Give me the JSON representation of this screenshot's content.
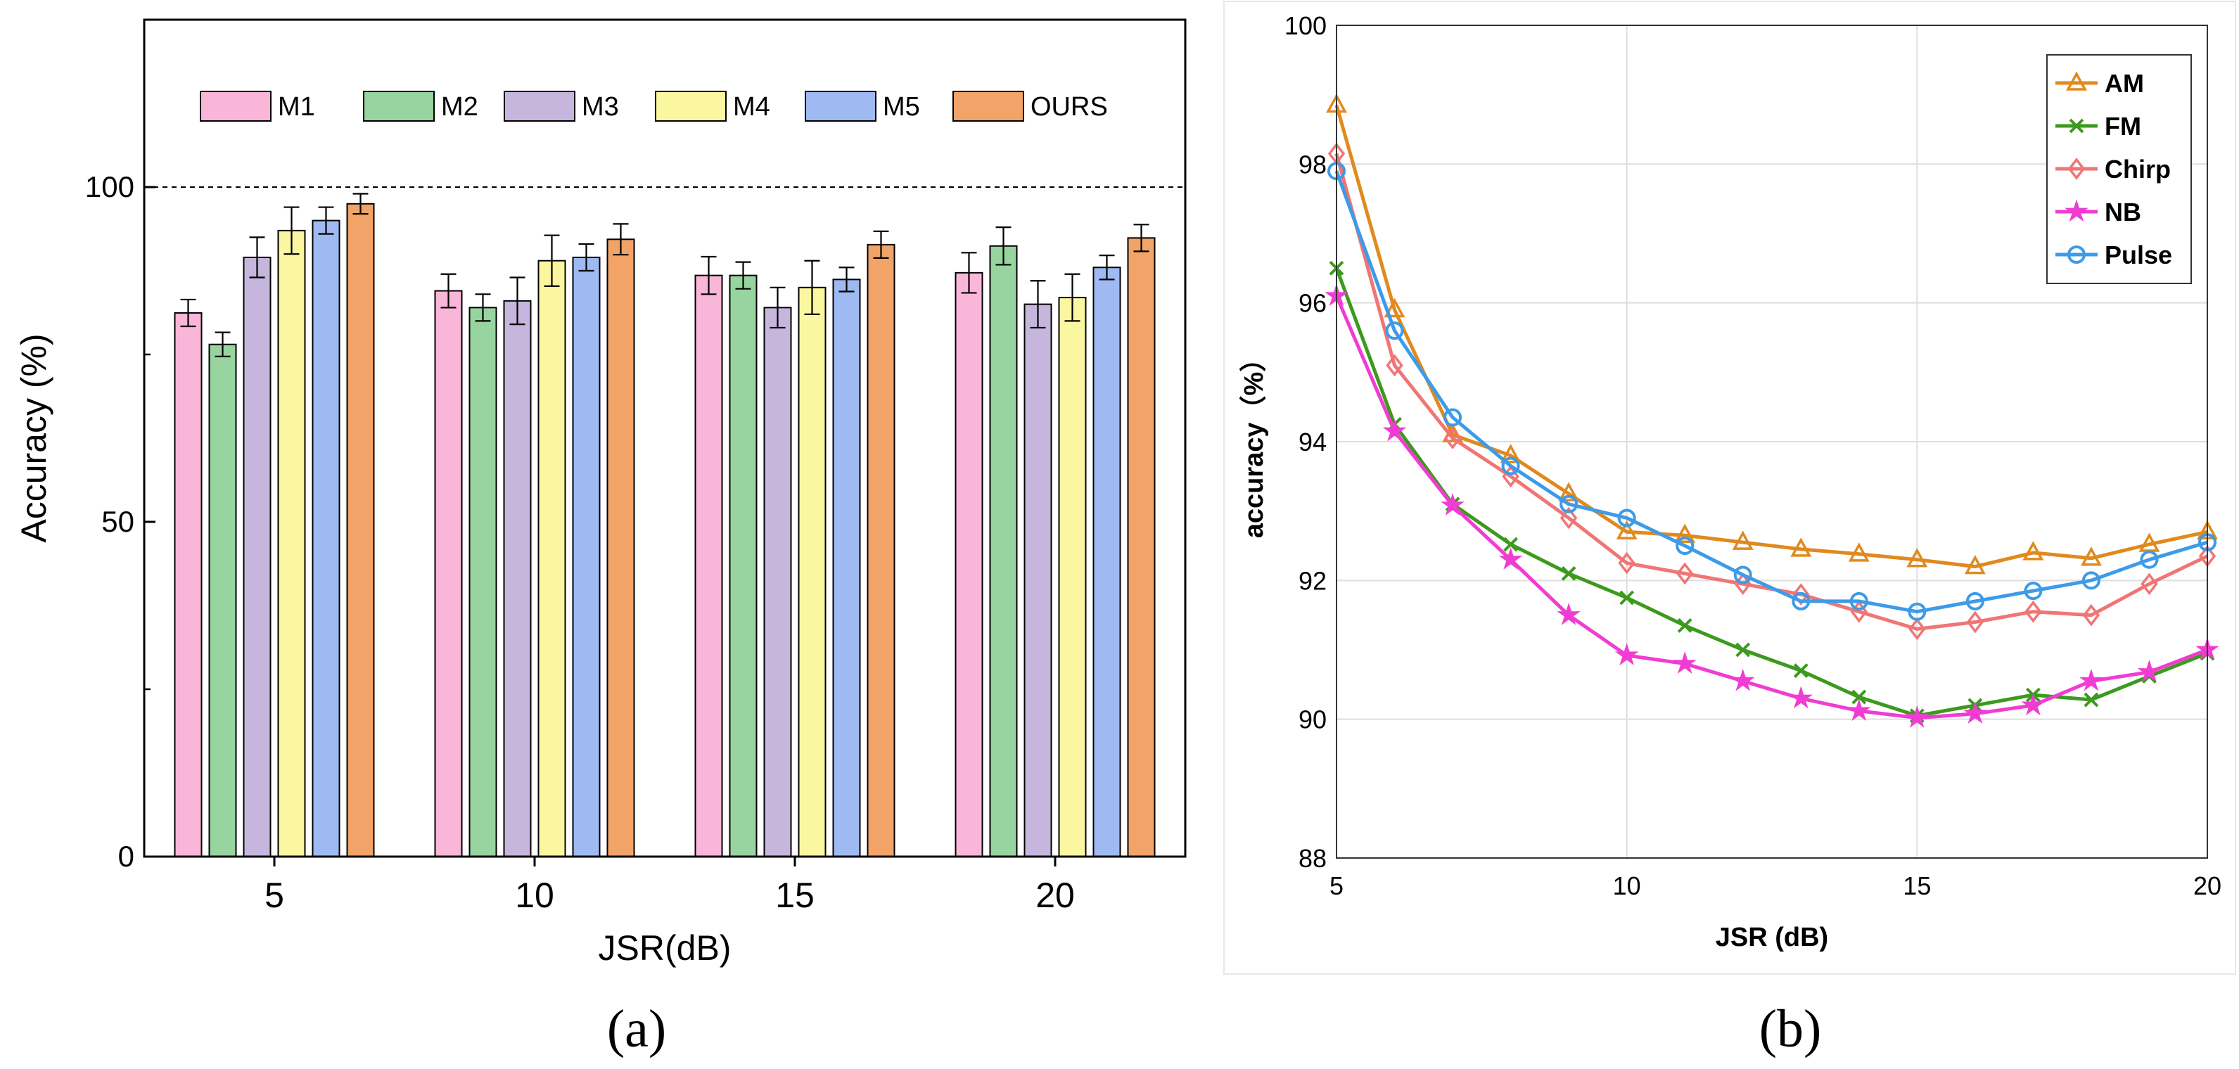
{
  "panels": {
    "a": {
      "caption": "(a)"
    },
    "b": {
      "caption": "(b)"
    }
  },
  "colors": {
    "M1": "#f9b6d8",
    "M2": "#98d49f",
    "M3": "#c6b6dd",
    "M4": "#fbf7a1",
    "M5": "#9fbaf2",
    "OURS": "#f2a368",
    "AM": "#e08a1e",
    "FM": "#3c9a1c",
    "Chirp": "#f07575",
    "NB": "#f03cd2",
    "Pulse": "#3d9be8"
  },
  "chart_data": [
    {
      "id": "a",
      "type": "bar",
      "title": "",
      "xlabel": "JSR(dB)",
      "ylabel": "Accuracy (%)",
      "ylim": [
        0,
        125
      ],
      "yticks": [
        0,
        50,
        100
      ],
      "reference_line": 100,
      "legend_position": "top",
      "categories": [
        "5",
        "10",
        "15",
        "20"
      ],
      "series": [
        {
          "name": "M1",
          "values": [
            81.2,
            84.5,
            86.8,
            87.2
          ],
          "errors": [
            2.0,
            2.5,
            2.8,
            3.0
          ]
        },
        {
          "name": "M2",
          "values": [
            76.5,
            82.0,
            86.8,
            91.2
          ],
          "errors": [
            1.8,
            2.0,
            2.0,
            2.8
          ]
        },
        {
          "name": "M3",
          "values": [
            89.5,
            83.0,
            82.0,
            82.5
          ],
          "errors": [
            3.0,
            3.5,
            3.0,
            3.5
          ]
        },
        {
          "name": "M4",
          "values": [
            93.5,
            89.0,
            85.0,
            83.5
          ],
          "errors": [
            3.5,
            3.8,
            4.0,
            3.5
          ]
        },
        {
          "name": "M5",
          "values": [
            95.0,
            89.5,
            86.2,
            88.0
          ],
          "errors": [
            2.0,
            2.0,
            1.8,
            1.8
          ]
        },
        {
          "name": "OURS",
          "values": [
            97.5,
            92.2,
            91.4,
            92.4
          ],
          "errors": [
            1.5,
            2.3,
            2.0,
            2.0
          ]
        }
      ]
    },
    {
      "id": "b",
      "type": "line",
      "title": "",
      "xlabel": "JSR (dB)",
      "ylabel": "accuracy（%）",
      "xlim": [
        5,
        20
      ],
      "ylim": [
        88,
        100
      ],
      "xticks": [
        5,
        10,
        15,
        20
      ],
      "yticks": [
        88,
        90,
        92,
        94,
        96,
        98,
        100
      ],
      "grid": true,
      "legend_position": "top-right",
      "x": [
        5,
        6,
        7,
        8,
        9,
        10,
        11,
        12,
        13,
        14,
        15,
        16,
        17,
        18,
        19,
        20
      ],
      "series": [
        {
          "name": "AM",
          "marker": "triangle",
          "values": [
            98.85,
            95.9,
            94.1,
            93.8,
            93.25,
            92.7,
            92.65,
            92.55,
            92.45,
            92.38,
            92.3,
            92.2,
            92.4,
            92.32,
            92.52,
            92.7
          ]
        },
        {
          "name": "FM",
          "marker": "x",
          "values": [
            96.5,
            94.25,
            93.1,
            92.52,
            92.1,
            91.75,
            91.35,
            91.0,
            90.7,
            90.32,
            90.05,
            90.2,
            90.35,
            90.28,
            90.62,
            90.95
          ]
        },
        {
          "name": "Chirp",
          "marker": "diamond",
          "values": [
            98.15,
            95.1,
            94.05,
            93.5,
            92.9,
            92.25,
            92.1,
            91.95,
            91.8,
            91.55,
            91.3,
            91.4,
            91.55,
            91.5,
            91.95,
            92.35
          ]
        },
        {
          "name": "NB",
          "marker": "star",
          "values": [
            96.1,
            94.15,
            93.08,
            92.3,
            91.5,
            90.92,
            90.8,
            90.55,
            90.3,
            90.12,
            90.02,
            90.08,
            90.2,
            90.55,
            90.68,
            91.0
          ]
        },
        {
          "name": "Pulse",
          "marker": "circle",
          "values": [
            97.9,
            95.6,
            94.35,
            93.65,
            93.1,
            92.9,
            92.5,
            92.08,
            91.7,
            91.7,
            91.55,
            91.7,
            91.85,
            92.0,
            92.3,
            92.55
          ]
        }
      ]
    }
  ]
}
